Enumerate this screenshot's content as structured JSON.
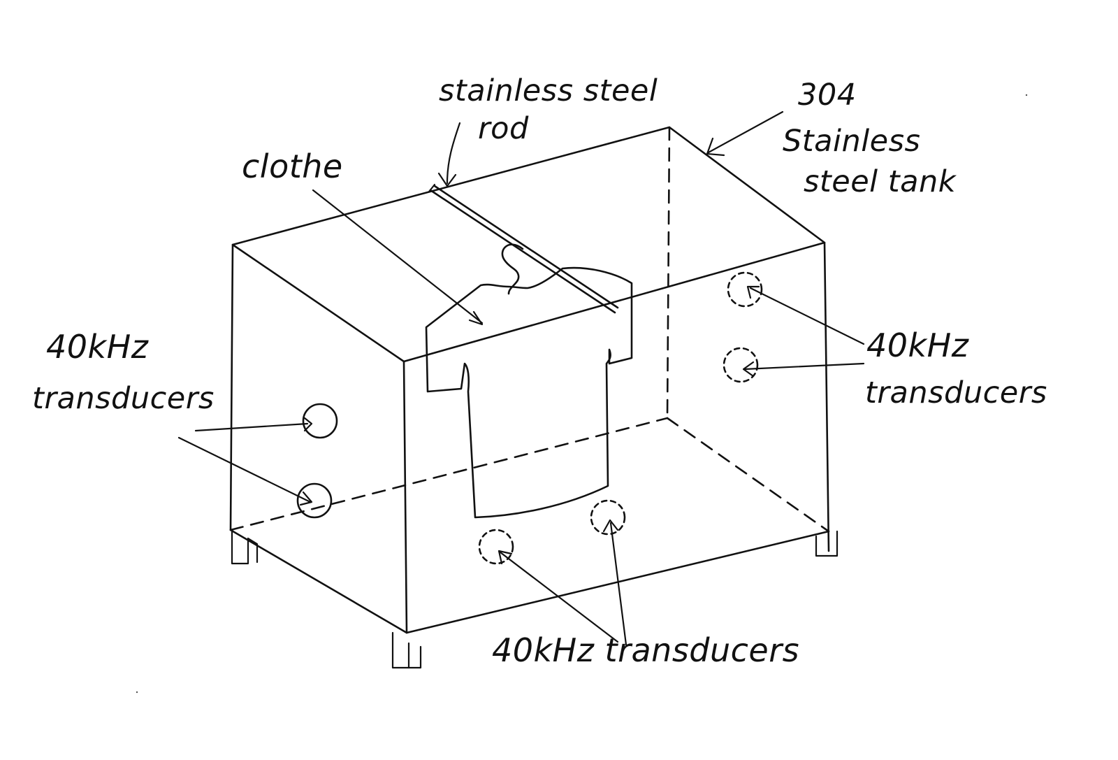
{
  "labels": {
    "rod_line1": "stainless steel",
    "rod_line2": "rod",
    "tank_line1": "304",
    "tank_line2": "Stainless",
    "tank_line3": "steel tank",
    "clothe": "clothe",
    "left_line1": "40kHz",
    "left_line2": "transducers",
    "right_line1": "40kHz",
    "right_line2": "transducers",
    "bottom": "40kHz transducers"
  },
  "colors": {
    "ink": "#111111",
    "paper": "#ffffff"
  }
}
